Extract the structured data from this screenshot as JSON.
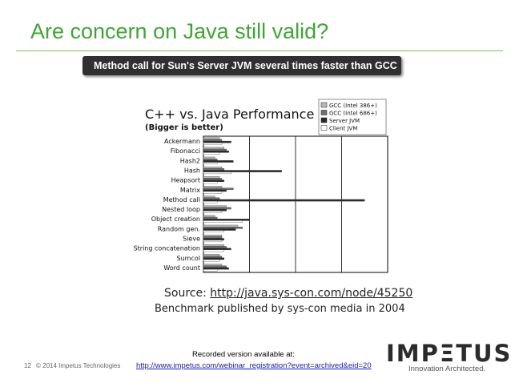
{
  "slide": {
    "title": "Are concern on Java still valid?",
    "banner": "Method call for Sun's Server JVM several times faster than GCC",
    "source_prefix": "Source: ",
    "source_link": "http://java.sys-con.com/node/45250",
    "source_note": "Benchmark published by sys-con media in 2004",
    "recorded_note": "Recorded version available at:",
    "recorded_url": "http://www.impetus.com/webinar_registration?event=archived&eid=20",
    "page_number": "12",
    "copyright": "© 2014 Impetus Technologies",
    "logo_text": "IMPΞTUS",
    "logo_tagline": "Innovation Architected."
  },
  "colors": {
    "title": "#3fa535",
    "rule": "#7fbf5a",
    "banner_bg": "#303030",
    "series": [
      "#b8b8b8",
      "#707070",
      "#2a2a2a",
      "#ffffff"
    ]
  },
  "chart_data": {
    "type": "bar",
    "orientation": "horizontal",
    "title": "C++ vs. Java Performance",
    "subtitle": "(Bigger is better)",
    "categories": [
      "Ackermann",
      "Fibonacci",
      "Hash2",
      "Hash",
      "Heapsort",
      "Matrix",
      "Method call",
      "Nested loop",
      "Object creation",
      "Random gen.",
      "Sieve",
      "String concatenation",
      "Sumcol",
      "Word count"
    ],
    "series": [
      {
        "name": "GCC (Intel 386+)",
        "values": [
          0.7,
          0.9,
          0.5,
          0.8,
          0.7,
          0.8,
          0.5,
          1.0,
          0.5,
          1.5,
          0.8,
          0.9,
          0.7,
          0.8
        ]
      },
      {
        "name": "GCC (Intel 686+)",
        "values": [
          0.8,
          1.0,
          0.6,
          0.9,
          0.8,
          1.3,
          0.7,
          1.2,
          0.6,
          1.7,
          0.8,
          1.0,
          0.8,
          1.0
        ]
      },
      {
        "name": "Server JVM",
        "values": [
          1.2,
          1.1,
          1.3,
          3.4,
          0.9,
          1.0,
          7.0,
          1.0,
          2.0,
          1.4,
          0.9,
          1.2,
          0.9,
          1.1
        ]
      },
      {
        "name": "Client JVM",
        "values": [
          0.8,
          0.7,
          0.6,
          1.2,
          0.6,
          0.8,
          0.6,
          0.8,
          1.7,
          0.9,
          0.8,
          0.9,
          0.7,
          0.6
        ]
      }
    ],
    "xlim": [
      0,
      8
    ],
    "grid": true,
    "legend_position": "top-right"
  }
}
